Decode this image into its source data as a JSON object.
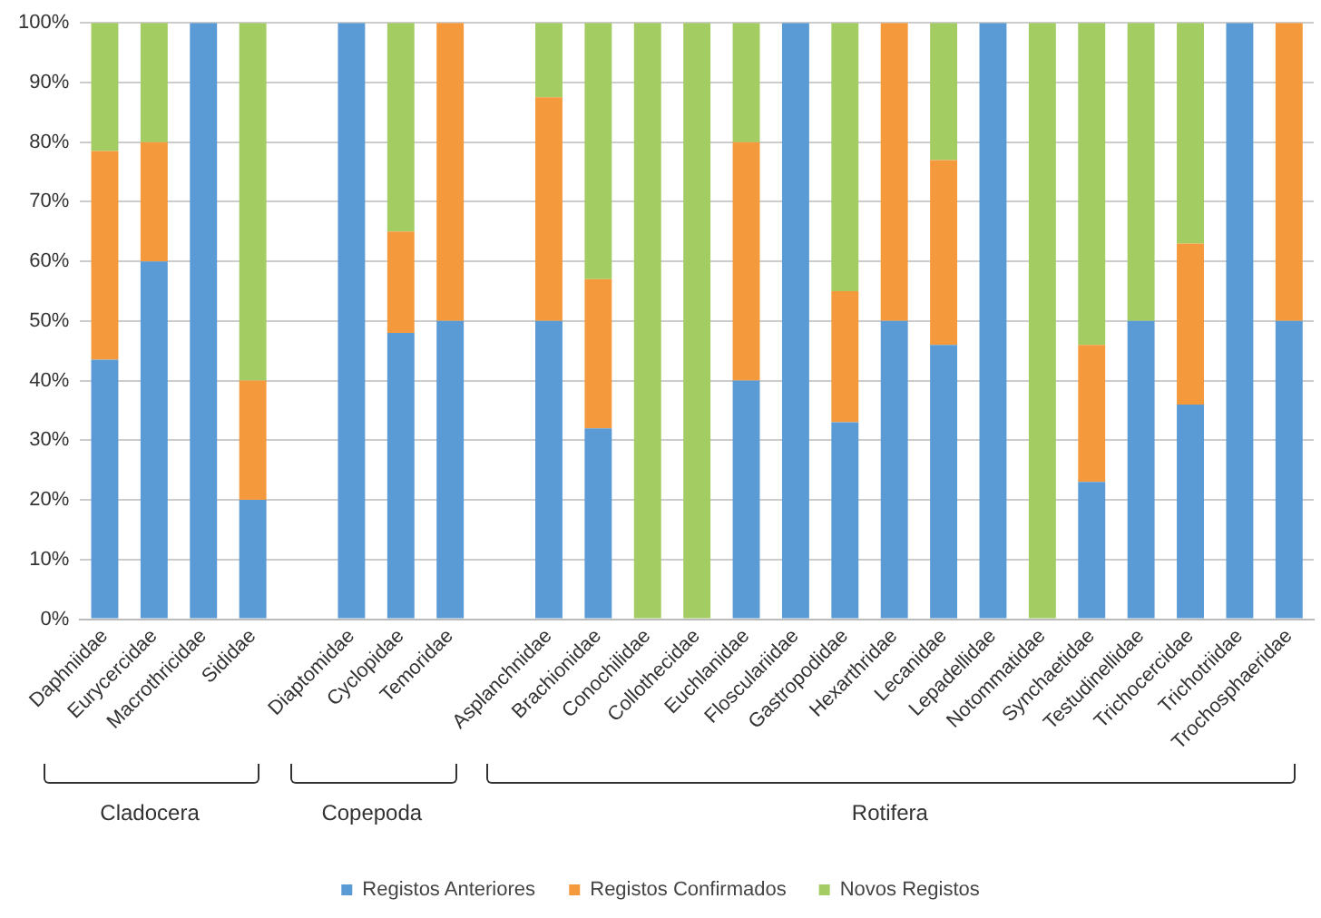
{
  "chart_data": {
    "type": "bar",
    "stacked": true,
    "categories": [
      "Daphniidae",
      "Eurycercidae",
      "Macrothricidae",
      "Sididae",
      null,
      "Diaptomidae",
      "Cyclopidae",
      "Temoridae",
      null,
      "Asplanchnidae",
      "Brachionidae",
      "Conochilidae",
      "Collothecidae",
      "Euchlanidae",
      "Flosculariidae",
      "Gastropodidae",
      "Hexarthridae",
      "Lecanidae",
      "Lepadellidae",
      "Notommatidae",
      "Synchaetidae",
      "Testudinellidae",
      "Trichocercidae",
      "Trichotriidae",
      "Trochosphaeridae"
    ],
    "series": [
      {
        "name": "Registos Anteriores",
        "color": "#5b9bd5",
        "values": [
          43.5,
          60,
          100,
          20,
          null,
          100,
          48,
          50,
          null,
          50,
          32,
          0,
          0,
          40,
          100,
          33,
          50,
          46,
          100,
          0,
          23,
          50,
          36,
          100,
          50
        ]
      },
      {
        "name": "Registos Confirmados",
        "color": "#f59a3c",
        "values": [
          35,
          20,
          0,
          20,
          null,
          0,
          17,
          50,
          null,
          37.5,
          25,
          0,
          0,
          40,
          0,
          22,
          50,
          31,
          0,
          0,
          23,
          0,
          27,
          0,
          50
        ]
      },
      {
        "name": "Novos Registos",
        "color": "#a3cc62",
        "values": [
          21.5,
          20,
          0,
          60,
          null,
          0,
          35,
          0,
          null,
          12.5,
          43,
          100,
          100,
          20,
          0,
          45,
          0,
          23,
          0,
          100,
          54,
          50,
          37,
          0,
          0
        ]
      }
    ],
    "ylim": [
      0,
      100
    ],
    "yticks": [
      {
        "value": 0,
        "label": "0%"
      },
      {
        "value": 10,
        "label": "10%"
      },
      {
        "value": 20,
        "label": "20%"
      },
      {
        "value": 30,
        "label": "30%"
      },
      {
        "value": 40,
        "label": "40%"
      },
      {
        "value": 50,
        "label": "50%"
      },
      {
        "value": 60,
        "label": "60%"
      },
      {
        "value": 70,
        "label": "70%"
      },
      {
        "value": 80,
        "label": "80%"
      },
      {
        "value": 90,
        "label": "90%"
      },
      {
        "value": 100,
        "label": "100%"
      }
    ],
    "grid": "y",
    "legend": "bottom",
    "annotations": [
      "Cladocera",
      "Copepoda",
      "Rotifera"
    ]
  }
}
